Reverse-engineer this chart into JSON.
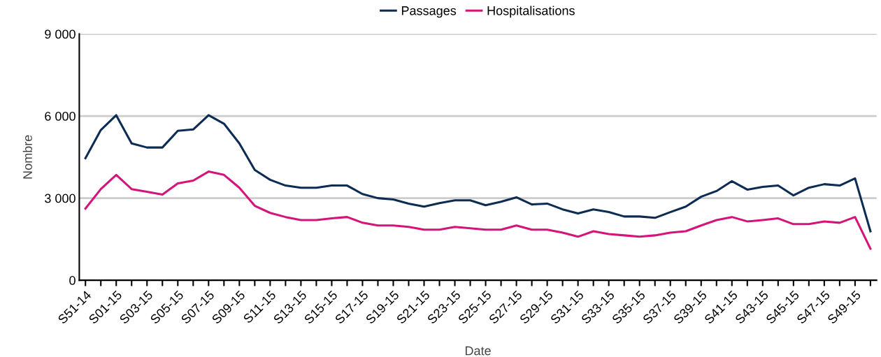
{
  "chart_data": {
    "type": "line",
    "xlabel": "Date",
    "ylabel": "Nombre",
    "legend": "top",
    "grid": "y",
    "marker": "none",
    "line_style": "solid",
    "categories": [
      "S51-14",
      null,
      "S01-15",
      null,
      "S03-15",
      null,
      "S05-15",
      null,
      "S07-15",
      null,
      "S09-15",
      null,
      "S11-15",
      null,
      "S13-15",
      null,
      "S15-15",
      null,
      "S17-15",
      null,
      "S19-15",
      null,
      "S21-15",
      null,
      "S23-15",
      null,
      "S25-15",
      null,
      "S27-15",
      null,
      "S29-15",
      null,
      "S31-15",
      null,
      "S33-15",
      null,
      "S35-15",
      null,
      "S37-15",
      null,
      "S39-15",
      null,
      "S41-15",
      null,
      "S43-15",
      null,
      "S45-15",
      null,
      "S47-15",
      null,
      "S49-15",
      null
    ],
    "ylim": [
      0,
      9000
    ],
    "yticks": [
      {
        "value": 0,
        "label": "0"
      },
      {
        "value": 3000,
        "label": "3 000"
      },
      {
        "value": 6000,
        "label": "6 000"
      },
      {
        "value": 9000,
        "label": "9 000"
      }
    ],
    "series": [
      {
        "name": "Passages",
        "color": "#0d2c54",
        "values": [
          4460,
          5490,
          6030,
          5000,
          4850,
          4850,
          5460,
          5510,
          6030,
          5720,
          5000,
          4030,
          3670,
          3460,
          3380,
          3380,
          3460,
          3460,
          3150,
          3000,
          2950,
          2800,
          2690,
          2820,
          2920,
          2920,
          2740,
          2870,
          3030,
          2770,
          2800,
          2590,
          2440,
          2590,
          2490,
          2330,
          2330,
          2280,
          2490,
          2690,
          3050,
          3260,
          3620,
          3310,
          3410,
          3460,
          3100,
          3380,
          3510,
          3460,
          3720,
          1790
        ]
      },
      {
        "name": "Hospitalisations",
        "color": "#d4147a",
        "values": [
          2620,
          3330,
          3850,
          3330,
          3230,
          3130,
          3540,
          3640,
          3970,
          3850,
          3380,
          2720,
          2460,
          2310,
          2200,
          2200,
          2260,
          2310,
          2100,
          2000,
          2000,
          1950,
          1850,
          1850,
          1950,
          1900,
          1850,
          1850,
          2000,
          1850,
          1850,
          1740,
          1590,
          1790,
          1690,
          1640,
          1590,
          1640,
          1740,
          1790,
          2000,
          2200,
          2310,
          2150,
          2200,
          2260,
          2050,
          2050,
          2150,
          2100,
          2310,
          1150
        ]
      }
    ]
  }
}
